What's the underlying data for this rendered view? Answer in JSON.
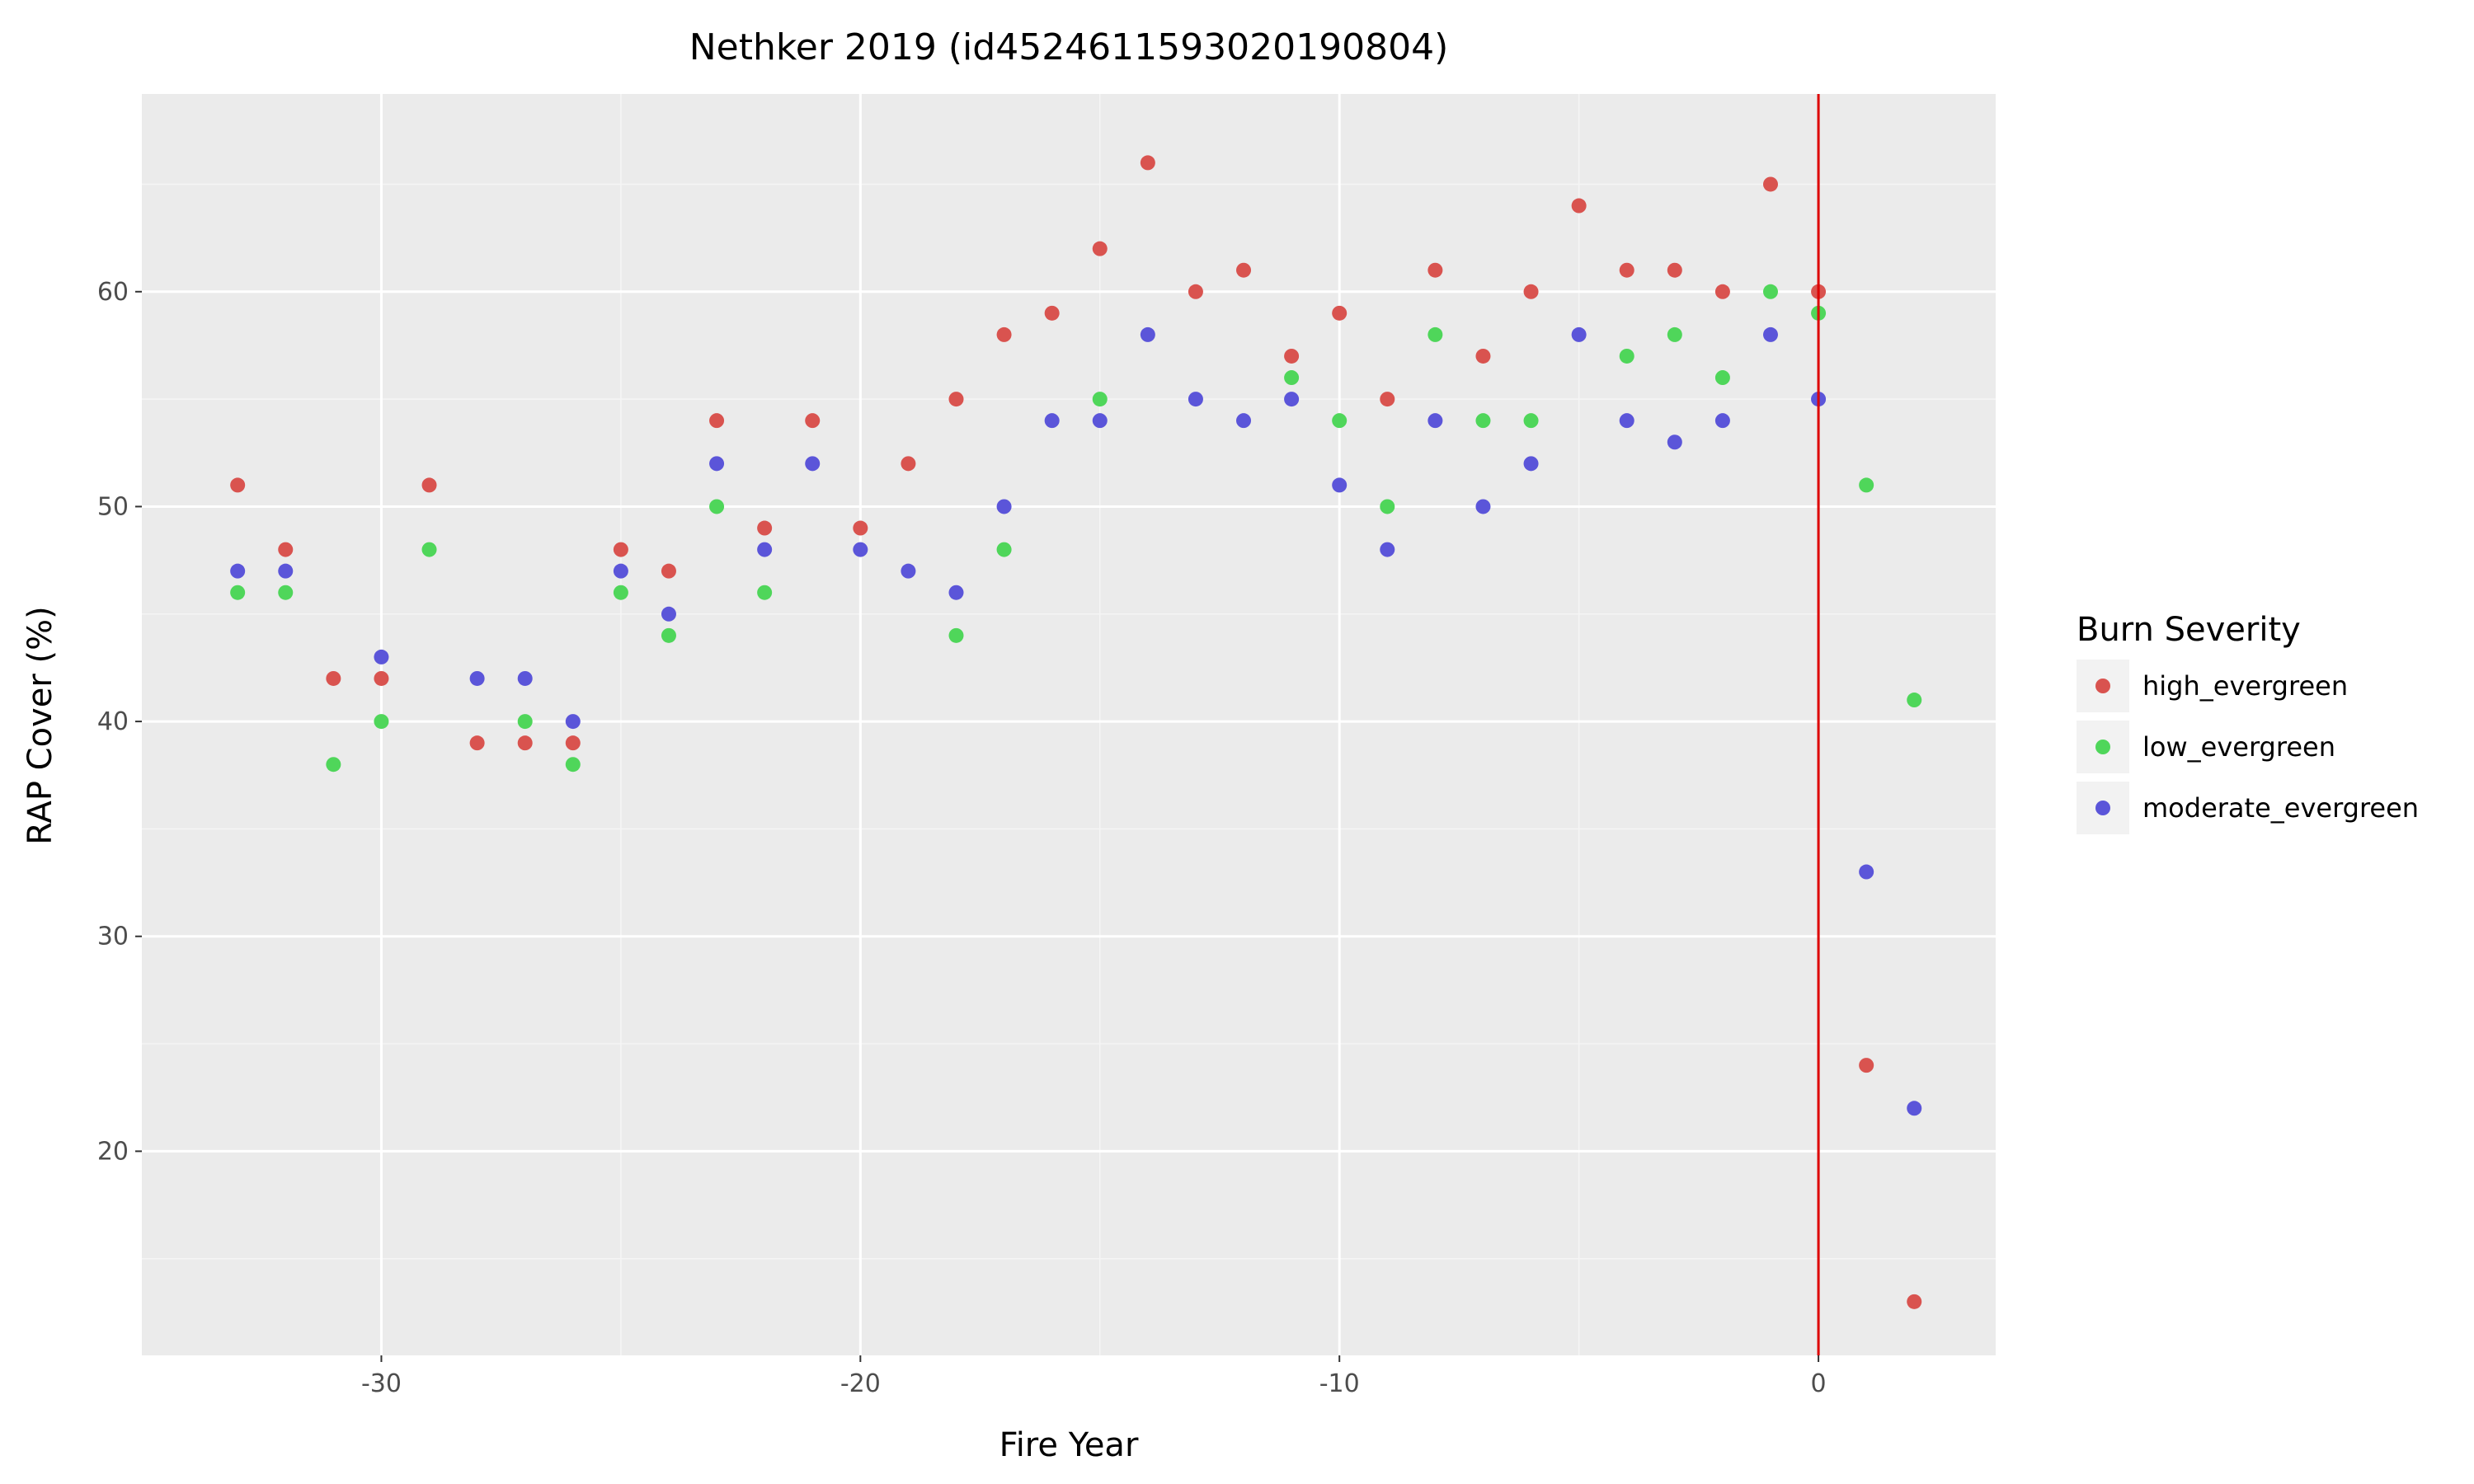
{
  "chart_data": {
    "type": "scatter",
    "title": "Nethker 2019 (id4524611593020190804)",
    "xlabel": "Fire Year",
    "ylabel": "RAP Cover (%)",
    "xlim": [
      -35,
      3.7
    ],
    "ylim": [
      10.5,
      69.2
    ],
    "x_ticks": [
      -30,
      -20,
      -10,
      0
    ],
    "y_ticks": [
      20,
      30,
      40,
      50,
      60
    ],
    "x_tick_labels": [
      "-30",
      "-20",
      "-10",
      "0"
    ],
    "y_tick_labels": [
      "20",
      "30",
      "40",
      "50",
      "60"
    ],
    "grid": true,
    "background": "#ebebeb",
    "vline": {
      "x": 0,
      "color": "#dd0000"
    },
    "legend": {
      "title": "Burn Severity",
      "position": "right"
    },
    "series": [
      {
        "name": "high_evergreen",
        "color": "#d9534f",
        "points": [
          [
            -33,
            51
          ],
          [
            -32,
            48
          ],
          [
            -31,
            42
          ],
          [
            -30,
            42
          ],
          [
            -29,
            51
          ],
          [
            -28,
            39
          ],
          [
            -27,
            39
          ],
          [
            -26,
            39
          ],
          [
            -25,
            48
          ],
          [
            -24,
            47
          ],
          [
            -23,
            54
          ],
          [
            -22,
            49
          ],
          [
            -21,
            54
          ],
          [
            -20,
            49
          ],
          [
            -19,
            52
          ],
          [
            -18,
            55
          ],
          [
            -17,
            58
          ],
          [
            -16,
            59
          ],
          [
            -15,
            62
          ],
          [
            -14,
            66
          ],
          [
            -13,
            60
          ],
          [
            -12,
            61
          ],
          [
            -11,
            57
          ],
          [
            -10,
            59
          ],
          [
            -9,
            55
          ],
          [
            -8,
            61
          ],
          [
            -7,
            57
          ],
          [
            -6,
            60
          ],
          [
            -5,
            64
          ],
          [
            -4,
            61
          ],
          [
            -3,
            61
          ],
          [
            -2,
            60
          ],
          [
            -1,
            65
          ],
          [
            0,
            60
          ],
          [
            1,
            24
          ],
          [
            2,
            13
          ]
        ]
      },
      {
        "name": "low_evergreen",
        "color": "#4fd65a",
        "points": [
          [
            -33,
            46
          ],
          [
            -32,
            46
          ],
          [
            -31,
            38
          ],
          [
            -30,
            40
          ],
          [
            -29,
            48
          ],
          [
            -27,
            40
          ],
          [
            -26,
            38
          ],
          [
            -25,
            46
          ],
          [
            -24,
            44
          ],
          [
            -23,
            50
          ],
          [
            -22,
            46
          ],
          [
            -18,
            44
          ],
          [
            -17,
            48
          ],
          [
            -15,
            55
          ],
          [
            -11,
            56
          ],
          [
            -10,
            54
          ],
          [
            -9,
            50
          ],
          [
            -8,
            58
          ],
          [
            -7,
            54
          ],
          [
            -6,
            54
          ],
          [
            -4,
            57
          ],
          [
            -3,
            58
          ],
          [
            -2,
            56
          ],
          [
            -1,
            60
          ],
          [
            0,
            59
          ],
          [
            1,
            51
          ],
          [
            2,
            41
          ]
        ]
      },
      {
        "name": "moderate_evergreen",
        "color": "#5b55d9",
        "points": [
          [
            -33,
            47
          ],
          [
            -32,
            47
          ],
          [
            -30,
            43
          ],
          [
            -28,
            42
          ],
          [
            -27,
            42
          ],
          [
            -26,
            40
          ],
          [
            -25,
            47
          ],
          [
            -24,
            45
          ],
          [
            -23,
            52
          ],
          [
            -22,
            48
          ],
          [
            -21,
            52
          ],
          [
            -20,
            48
          ],
          [
            -19,
            47
          ],
          [
            -18,
            46
          ],
          [
            -17,
            50
          ],
          [
            -16,
            54
          ],
          [
            -15,
            54
          ],
          [
            -14,
            58
          ],
          [
            -13,
            55
          ],
          [
            -12,
            54
          ],
          [
            -11,
            55
          ],
          [
            -10,
            51
          ],
          [
            -9,
            48
          ],
          [
            -8,
            54
          ],
          [
            -7,
            50
          ],
          [
            -6,
            52
          ],
          [
            -5,
            58
          ],
          [
            -4,
            54
          ],
          [
            -3,
            53
          ],
          [
            -2,
            54
          ],
          [
            -1,
            58
          ],
          [
            0,
            55
          ],
          [
            1,
            33
          ],
          [
            2,
            22
          ]
        ]
      }
    ]
  }
}
